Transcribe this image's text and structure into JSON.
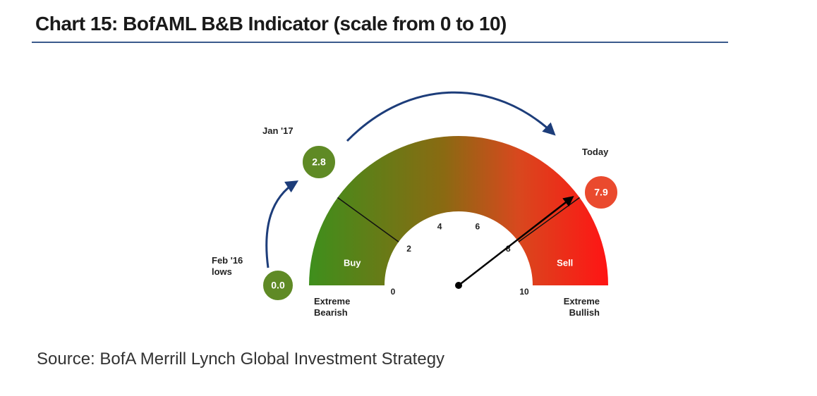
{
  "chart_data": {
    "type": "gauge",
    "title": "Chart 15: BofAML B&B Indicator (scale from 0 to 10)",
    "source": "Source: BofA Merrill Lynch Global Investment Strategy",
    "ylim": [
      0,
      10
    ],
    "yticks": [
      0,
      2,
      4,
      6,
      8,
      10
    ],
    "categories": [
      "Feb '16 lows",
      "Jan '17",
      "Today"
    ],
    "values": [
      0,
      2.8,
      7.9
    ],
    "value_labels": [
      "0.0",
      "2.8",
      "7.9"
    ],
    "colors": [
      "#5f8a25",
      "#5f8a25",
      "#ea4a2e"
    ],
    "zones": [
      {
        "name": "Buy",
        "from": 0,
        "to": 2
      },
      {
        "name": "Sell",
        "from": 8,
        "to": 10
      }
    ],
    "extremes": [
      "Extreme Bearish",
      "Extreme Bullish"
    ]
  }
}
